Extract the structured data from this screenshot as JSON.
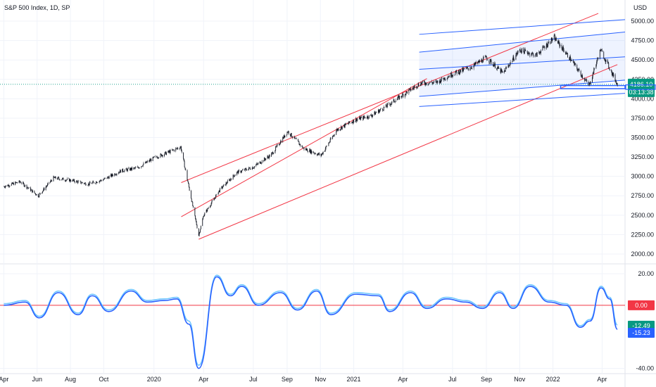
{
  "header": {
    "symbol_title": "S&P 500 Index, 1D, SP",
    "currency": "USD"
  },
  "chart_data": [
    {
      "type": "line",
      "name": "price",
      "x": [
        "2019-04-01",
        "2019-05-01",
        "2019-06-03",
        "2019-07-01",
        "2019-08-01",
        "2019-09-03",
        "2019-10-01",
        "2019-11-01",
        "2019-12-02",
        "2020-01-02",
        "2020-02-03",
        "2020-02-19",
        "2020-03-23",
        "2020-04-01",
        "2020-05-01",
        "2020-06-01",
        "2020-07-01",
        "2020-08-03",
        "2020-09-02",
        "2020-10-01",
        "2020-11-02",
        "2020-12-01",
        "2021-01-04",
        "2021-02-01",
        "2021-03-01",
        "2021-04-01",
        "2021-05-03",
        "2021-06-01",
        "2021-07-01",
        "2021-08-02",
        "2021-09-01",
        "2021-10-01",
        "2021-11-01",
        "2021-12-01",
        "2022-01-03",
        "2022-02-01",
        "2022-03-08",
        "2022-03-29",
        "2022-04-15",
        "2022-04-29"
      ],
      "values": [
        2870,
        2930,
        2750,
        2980,
        2950,
        2900,
        2960,
        3070,
        3110,
        3240,
        3330,
        3380,
        2240,
        2500,
        2830,
        3050,
        3120,
        3280,
        3580,
        3360,
        3270,
        3600,
        3730,
        3780,
        3900,
        4050,
        4200,
        4210,
        4320,
        4400,
        4530,
        4330,
        4630,
        4560,
        4790,
        4520,
        4170,
        4630,
        4390,
        4186.1
      ],
      "xlim": [
        "2019-03-25",
        "2022-05-13"
      ],
      "ylim": [
        1900,
        5200
      ],
      "y_ticks": [
        "2000.00",
        "2250.00",
        "2500.00",
        "2750.00",
        "3000.00",
        "3250.00",
        "3500.00",
        "3750.00",
        "4000.00",
        "4250.00",
        "4500.00",
        "4750.00",
        "5000.00"
      ],
      "x_ticks": [
        "Apr",
        "Jun",
        "Aug",
        "Oct",
        "2020",
        "Apr",
        "Jul",
        "Sep",
        "Nov",
        "2021",
        "Apr",
        "Jul",
        "Sep",
        "Nov",
        "2022",
        "Apr"
      ],
      "last_price": "4186.10",
      "countdown": "03:13:38",
      "lines": {
        "red_channel": {
          "color": "#f23645",
          "lines": [
            [
              [
                "2020-02-20",
                2920
              ],
              [
                "2022-03-25",
                5100
              ]
            ],
            [
              [
                "2020-02-20",
                2480
              ],
              [
                "2021-05-15",
                4260
              ]
            ],
            [
              [
                "2020-03-23",
                2190
              ],
              [
                "2022-04-29",
                4440
              ]
            ]
          ]
        },
        "blue_channel": {
          "color": "#2962ff",
          "lines": [
            [
              [
                "2021-05-01",
                4830
              ],
              [
                "2022-05-13",
                5020
              ]
            ],
            [
              [
                "2021-05-01",
                4600
              ],
              [
                "2022-05-13",
                4860
              ]
            ],
            [
              [
                "2021-05-01",
                4380
              ],
              [
                "2022-05-13",
                4540
              ]
            ],
            [
              [
                "2021-05-01",
                4030
              ],
              [
                "2022-05-13",
                4240
              ]
            ],
            [
              [
                "2021-05-01",
                3900
              ],
              [
                "2022-05-13",
                4070
              ]
            ]
          ]
        }
      }
    },
    {
      "type": "line",
      "name": "oscillator",
      "series": [
        {
          "name": "",
          "color": "#2962ff",
          "x": [
            "2019-04-01",
            "2019-05-10",
            "2019-06-05",
            "2019-07-10",
            "2019-08-15",
            "2019-09-10",
            "2019-10-10",
            "2019-11-20",
            "2019-12-20",
            "2020-01-20",
            "2020-02-12",
            "2020-03-05",
            "2020-03-23",
            "2020-04-25",
            "2020-05-20",
            "2020-06-10",
            "2020-07-10",
            "2020-08-20",
            "2020-09-20",
            "2020-10-25",
            "2020-11-20",
            "2021-01-05",
            "2021-02-15",
            "2021-03-08",
            "2021-04-15",
            "2021-05-15",
            "2021-06-20",
            "2021-07-25",
            "2021-08-25",
            "2021-09-25",
            "2021-10-20",
            "2021-11-20",
            "2021-12-25",
            "2022-01-25",
            "2022-02-20",
            "2022-03-10",
            "2022-03-30",
            "2022-04-15",
            "2022-04-29"
          ],
          "values": [
            0,
            2,
            -8,
            8,
            -6,
            6,
            -4,
            9,
            2,
            3,
            4,
            -12,
            -40,
            18,
            6,
            12,
            0,
            8,
            -3,
            9,
            -6,
            7,
            6,
            -4,
            8,
            -2,
            4,
            2,
            -2,
            8,
            -2,
            12,
            2,
            0,
            -14,
            -10,
            11,
            4,
            -15.23
          ]
        },
        {
          "name": "",
          "color": "#6ec6ff",
          "x": [
            "2019-04-01",
            "2019-05-10",
            "2019-06-05",
            "2019-07-10",
            "2019-08-15",
            "2019-09-10",
            "2019-10-10",
            "2019-11-20",
            "2019-12-20",
            "2020-01-20",
            "2020-02-12",
            "2020-03-05",
            "2020-03-23",
            "2020-04-25",
            "2020-05-20",
            "2020-06-10",
            "2020-07-10",
            "2020-08-20",
            "2020-09-20",
            "2020-10-25",
            "2020-11-20",
            "2021-01-05",
            "2021-02-15",
            "2021-03-08",
            "2021-04-15",
            "2021-05-15",
            "2021-06-20",
            "2021-07-25",
            "2021-08-25",
            "2021-09-25",
            "2021-10-20",
            "2021-11-20",
            "2021-12-25",
            "2022-01-25",
            "2022-02-20",
            "2022-03-10",
            "2022-03-30",
            "2022-04-15",
            "2022-04-29"
          ],
          "values": [
            1,
            3,
            -7,
            9,
            -5,
            7,
            -3,
            10,
            3,
            4,
            5,
            -10,
            -38,
            19,
            7,
            13,
            1,
            9,
            -2,
            10,
            -5,
            8,
            7,
            -3,
            9,
            -1,
            5,
            3,
            -1,
            9,
            -1,
            13,
            3,
            1,
            -13,
            -9,
            12,
            5,
            -12.49
          ]
        }
      ],
      "baseline": {
        "value": 0,
        "color": "#f23645",
        "label": "0.00"
      },
      "ylim": [
        -42,
        24
      ],
      "y_ticks": [
        "20.00",
        "-40.00"
      ],
      "badges": [
        {
          "label": "0.00",
          "color": "#f23645"
        },
        {
          "label": "-12.49",
          "color": "#089981"
        },
        {
          "label": "-15.23",
          "color": "#2962ff"
        }
      ]
    }
  ]
}
